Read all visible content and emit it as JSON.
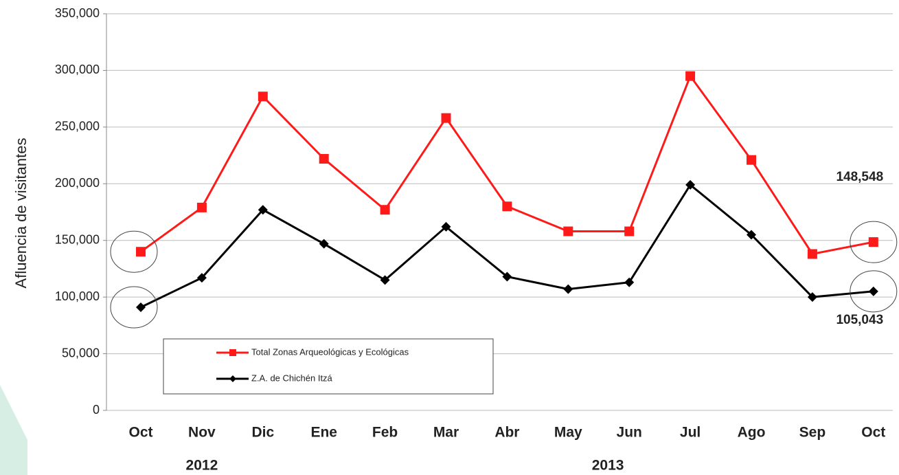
{
  "chart_data": {
    "type": "line",
    "y_label": "Afluencia de visitantes",
    "categories": [
      "Oct",
      "Nov",
      "Dic",
      "Ene",
      "Feb",
      "Mar",
      "Abr",
      "May",
      "Jun",
      "Jul",
      "Ago",
      "Sep",
      "Oct"
    ],
    "x_groups": [
      "2012",
      "2013"
    ],
    "series": [
      {
        "name": "Total Zonas Arqueológicas y Ecológicas",
        "color": "#ff1a1a",
        "marker": "square",
        "values": [
          140000,
          179000,
          277000,
          222000,
          177000,
          258000,
          180000,
          158000,
          158000,
          295000,
          221000,
          138000,
          148548
        ],
        "value_labels": [
          null,
          null,
          null,
          null,
          null,
          null,
          null,
          null,
          null,
          null,
          null,
          null,
          "148,548"
        ]
      },
      {
        "name": "Z.A. de Chichén Itzá",
        "color": "#000000",
        "marker": "diamond",
        "values": [
          91000,
          117000,
          177000,
          147000,
          115000,
          162000,
          118000,
          107000,
          113000,
          199000,
          155000,
          100000,
          105043
        ],
        "value_labels": [
          null,
          null,
          null,
          null,
          null,
          null,
          null,
          null,
          null,
          null,
          null,
          null,
          "105,043"
        ]
      }
    ],
    "ylim": [
      0,
      350000
    ],
    "yticks": [
      0,
      {
        "value": 50000,
        "label": "50,000"
      },
      {
        "value": 100000,
        "label": "100,000"
      },
      {
        "value": 150000,
        "label": "150,000"
      },
      {
        "value": 200000,
        "label": "200,000"
      },
      {
        "value": 250000,
        "label": "250,000"
      },
      {
        "value": 300000,
        "label": "300,000"
      },
      {
        "value": 350000,
        "label": "350,000"
      }
    ],
    "grid": true
  }
}
